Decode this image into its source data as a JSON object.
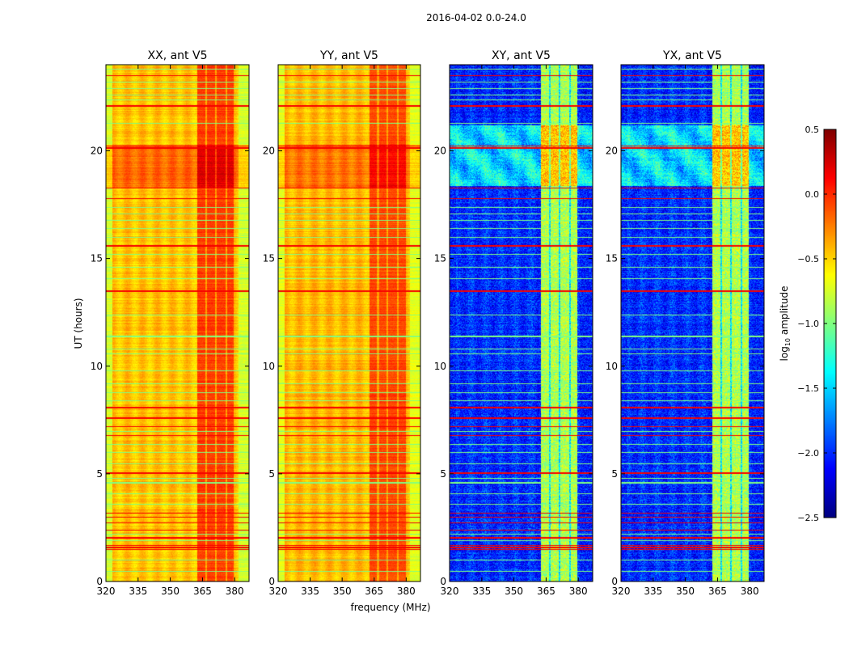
{
  "chart_data": {
    "type": "heatmap",
    "title": "2016-04-02 0.0-24.0",
    "xlabel": "frequency (MHz)",
    "ylabel": "UT (hours)",
    "xlim": [
      320,
      386.7
    ],
    "ylim": [
      0,
      24
    ],
    "xticks": [
      "320",
      "335",
      "350",
      "365",
      "380"
    ],
    "xtick_values": [
      320,
      335,
      350,
      365,
      380
    ],
    "yticks": [
      "0",
      "5",
      "10",
      "15",
      "20"
    ],
    "ytick_values": [
      0,
      5,
      10,
      15,
      20
    ],
    "colorbar": {
      "label": "log10 amplitude",
      "label_main": "log",
      "label_sub": "10",
      "label_rest": " amplitude",
      "range": [
        -2.5,
        0.5
      ],
      "ticks": [
        "0.5",
        "0.0",
        "−0.5",
        "−1.0",
        "−1.5",
        "−2.0",
        "−2.5"
      ],
      "tick_values": [
        0.5,
        0.0,
        -0.5,
        -1.0,
        -1.5,
        -2.0,
        -2.5
      ],
      "colormap": "jet"
    },
    "panels": [
      {
        "title": "XX, ant V5",
        "base": -0.45,
        "edge": -0.75,
        "band": -0.05,
        "gap": -0.35,
        "hot_hours": [
          18.3,
          20.3
        ],
        "hot_boost": 0.25
      },
      {
        "title": "YY, ant V5",
        "base": -0.42,
        "edge": -0.7,
        "band": -0.08,
        "gap": -0.35,
        "hot_hours": [
          18.3,
          20.3
        ],
        "hot_boost": 0.2
      },
      {
        "title": "XY, ant V5",
        "base": -2.0,
        "edge": -2.05,
        "band": -0.85,
        "gap": -1.45,
        "hot_hours": [
          18.4,
          21.2
        ],
        "hot_boost": 0.45
      },
      {
        "title": "YX, ant V5",
        "base": -2.0,
        "edge": -2.05,
        "band": -0.85,
        "gap": -1.45,
        "hot_hours": [
          18.4,
          21.2
        ],
        "hot_boost": 0.45
      }
    ],
    "band_edges_mhz": [
      [
        362.5,
        366.2
      ],
      [
        367.0,
        370.5
      ],
      [
        371.3,
        375.5
      ],
      [
        376.3,
        379.5
      ]
    ],
    "rfi_lines_hours_strong": [
      1.5,
      1.6,
      1.7,
      2.05,
      2.4,
      2.75,
      3.0,
      3.2,
      5.05,
      6.8,
      7.2,
      7.6,
      8.1,
      13.5,
      15.6,
      17.8,
      18.3,
      20.15,
      20.25,
      22.1,
      23.5
    ],
    "rfi_lines_hours_moderate": [
      0.5,
      1.0,
      1.9,
      2.2,
      3.6,
      4.1,
      4.6,
      4.8,
      5.5,
      6.0,
      6.4,
      7.0,
      8.4,
      8.8,
      9.2,
      9.8,
      10.6,
      10.8,
      11.4,
      12.4,
      14.1,
      14.6,
      15.2,
      16.0,
      16.4,
      16.8,
      17.1,
      17.4,
      21.3,
      22.4,
      22.6,
      22.9,
      23.2,
      23.8
    ]
  }
}
